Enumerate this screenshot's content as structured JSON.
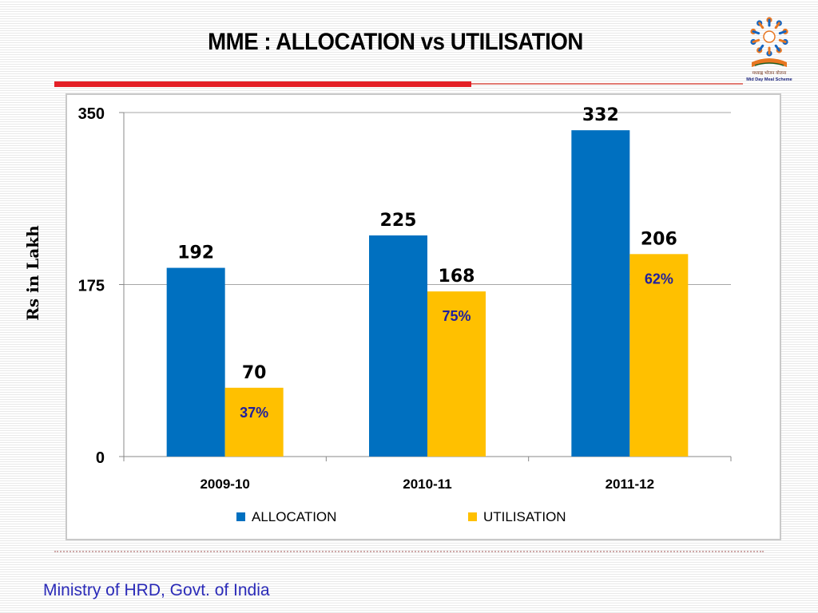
{
  "slide": {
    "title": "MME : ALLOCATION vs UTILISATION",
    "footer": "Ministry of HRD, Govt. of India",
    "logo_caption": "मध्याह्न भोजन योजना",
    "logo_caption_en": "Mid Day Meal Scheme"
  },
  "colors": {
    "allocation": "#0070c0",
    "utilisation": "#ffc000",
    "title_accent": "#e41f26",
    "footer_text": "#2a2ab8",
    "percent_label": "#1f1f9e"
  },
  "icons": {
    "logo": "mid-day-meal-scheme-logo"
  },
  "chart_data": {
    "type": "bar",
    "title": "",
    "xlabel": "",
    "ylabel": "Rs in Lakh",
    "ylim": [
      0,
      350
    ],
    "yticks": [
      0,
      175,
      350
    ],
    "grid": true,
    "legend_position": "bottom",
    "categories": [
      "2009-10",
      "2010-11",
      "2011-12"
    ],
    "series": [
      {
        "name": "ALLOCATION",
        "values": [
          192,
          225,
          332
        ],
        "labels": [
          "192",
          "225",
          "332"
        ],
        "annotations": [
          "",
          "",
          ""
        ]
      },
      {
        "name": "UTILISATION",
        "values": [
          70,
          168,
          206
        ],
        "labels": [
          "70",
          "168",
          "206"
        ],
        "annotations": [
          "37%",
          "75%",
          "62%"
        ]
      }
    ]
  }
}
